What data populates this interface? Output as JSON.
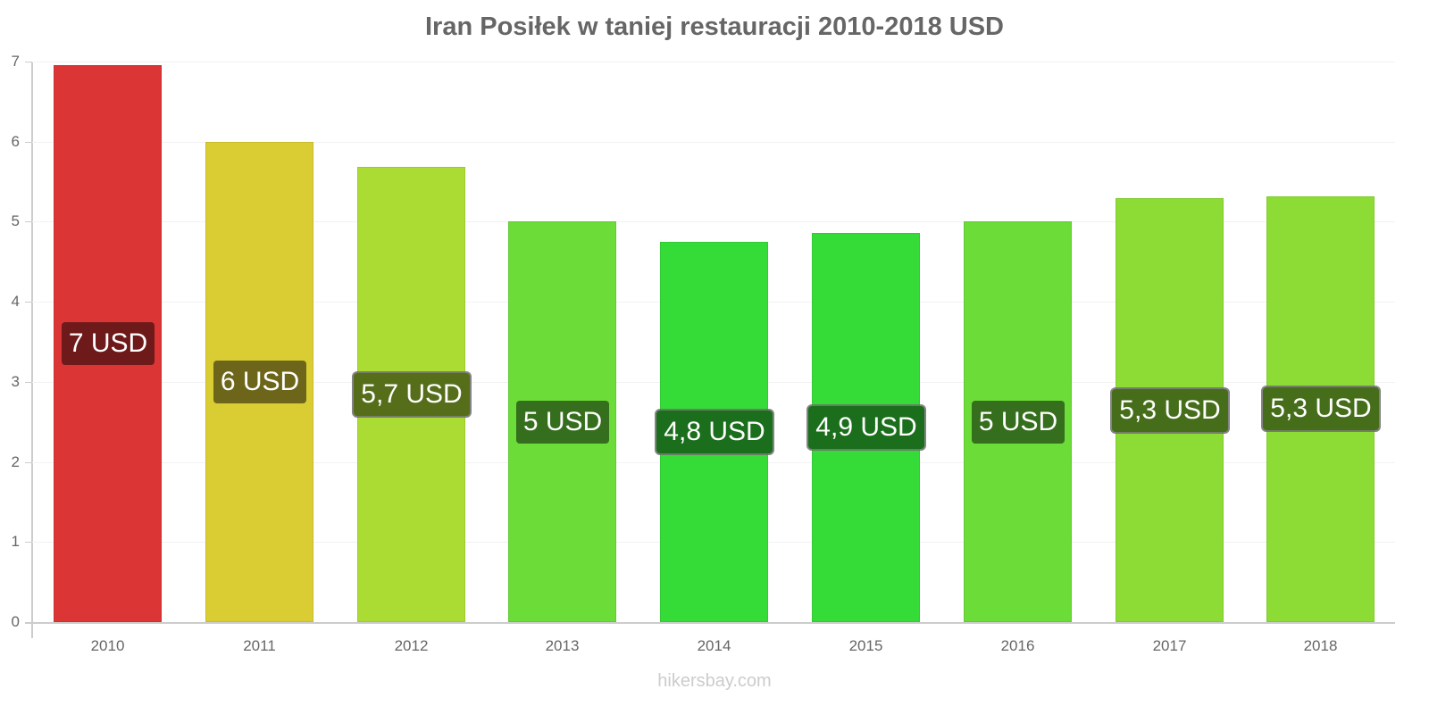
{
  "chart_data": {
    "type": "bar",
    "title": "Iran Posiłek w taniej restauracji 2010-2018 USD",
    "xlabel": "",
    "ylabel": "",
    "ylim": [
      0,
      7
    ],
    "yticks": [
      "0",
      "1",
      "2",
      "3",
      "4",
      "5",
      "6",
      "7"
    ],
    "grid": true,
    "legend": "none",
    "categories": [
      "2010",
      "2011",
      "2012",
      "2013",
      "2014",
      "2015",
      "2016",
      "2017",
      "2018"
    ],
    "values": [
      6.95,
      6.0,
      5.69,
      5.0,
      4.75,
      4.86,
      5.0,
      5.29,
      5.32
    ],
    "data_labels": [
      "7 USD",
      "6 USD",
      "5,7 USD",
      "5 USD",
      "4,8 USD",
      "4,9 USD",
      "5 USD",
      "5,3 USD",
      "5,3 USD"
    ],
    "bar_colors": [
      "#dc3535",
      "#dacd34",
      "#abdc34",
      "#6bdc38",
      "#35dc38",
      "#35dc38",
      "#6bdc38",
      "#8ddc35",
      "#8ddc35"
    ],
    "label_colors": [
      "#6e1a1a",
      "#6d661a",
      "#566e1a",
      "#356e1c",
      "#1b6e1c",
      "#1b6e1c",
      "#356e1c",
      "#466e1a",
      "#466e1a"
    ]
  },
  "footer": {
    "watermark": "hikersbay.com"
  }
}
